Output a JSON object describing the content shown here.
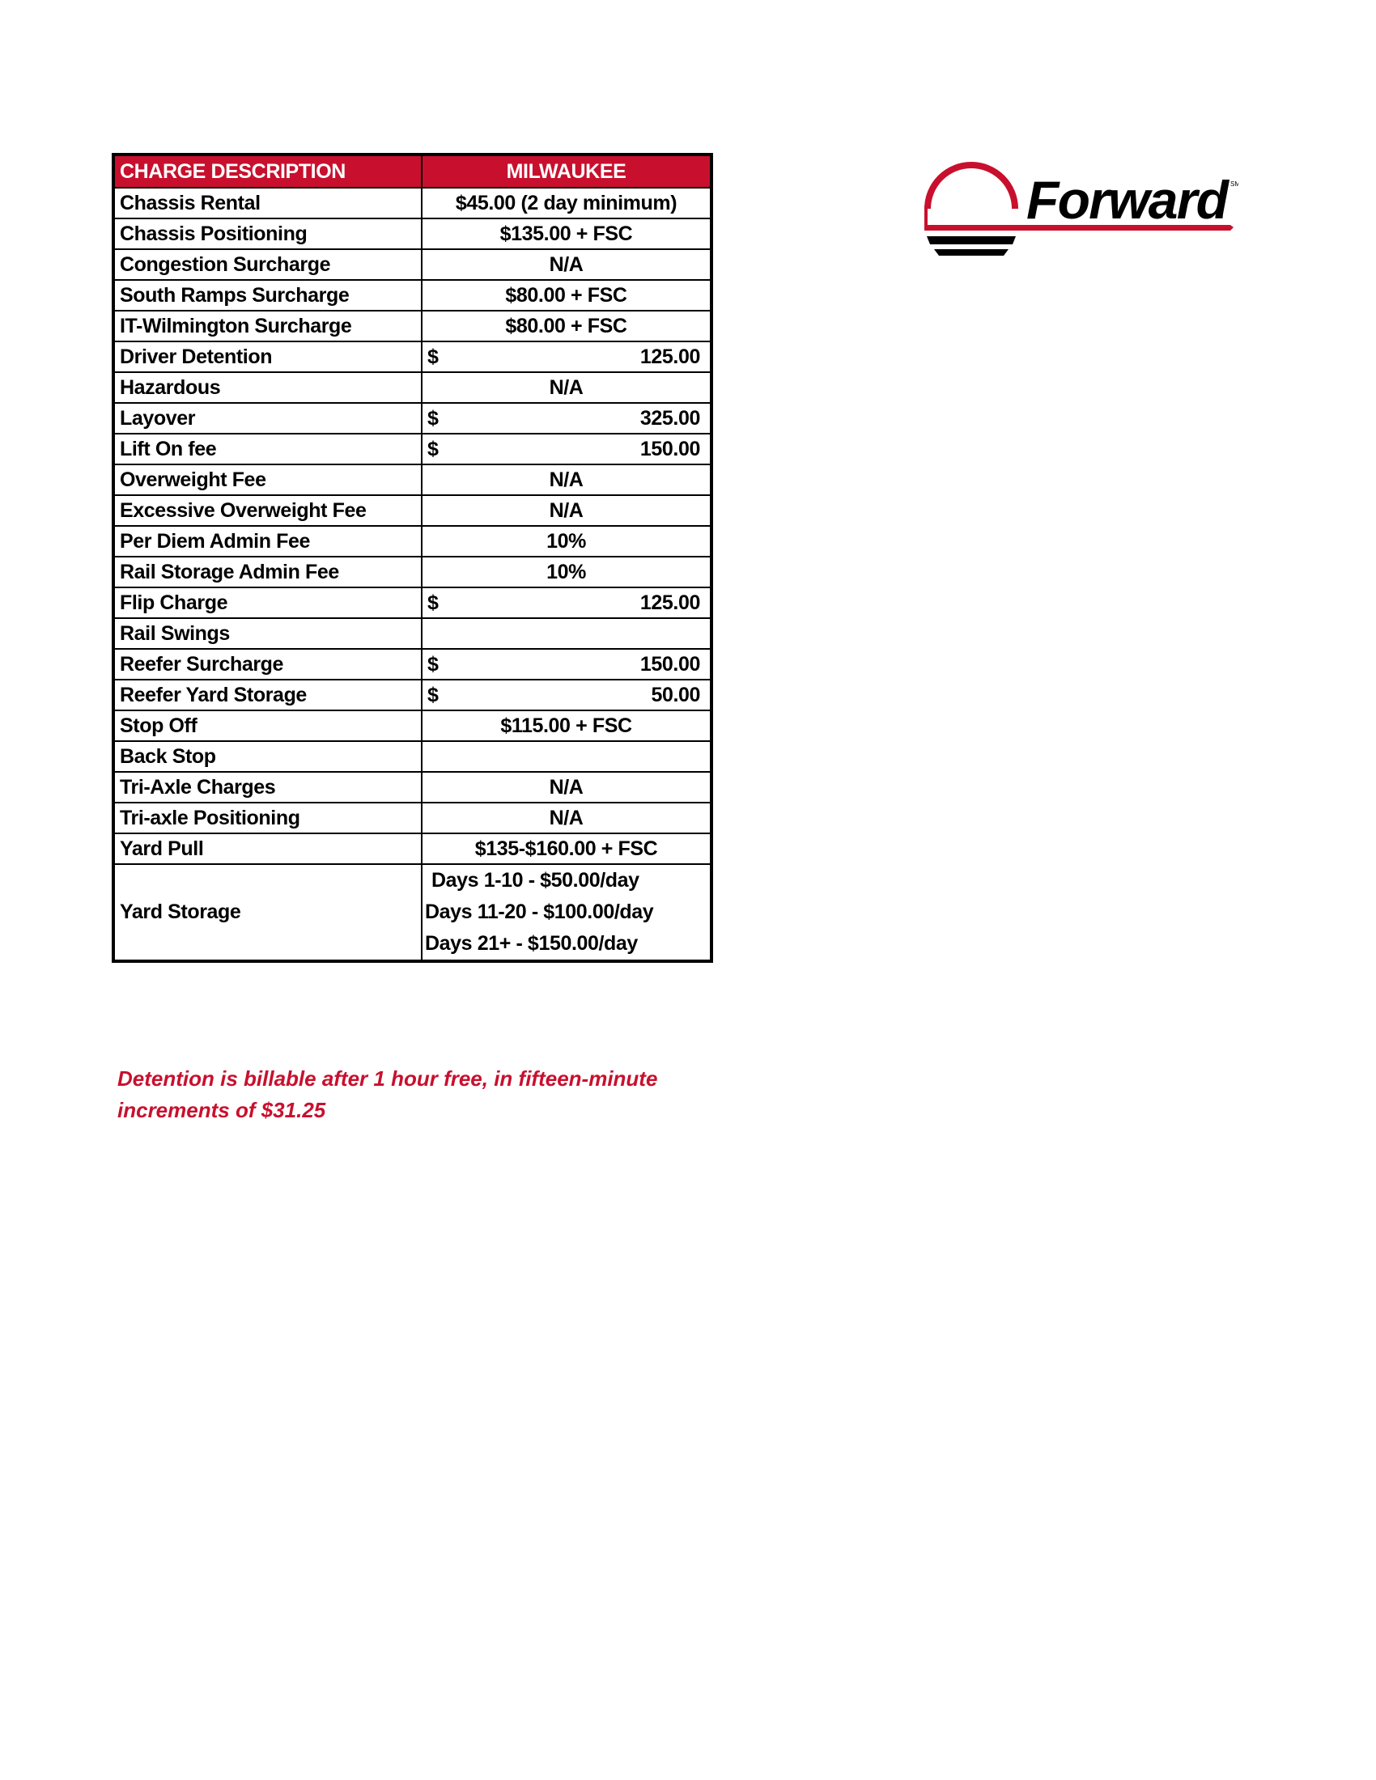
{
  "table": {
    "headers": [
      "CHARGE DESCRIPTION",
      "MILWAUKEE"
    ],
    "rows": [
      {
        "desc": "Chassis Rental",
        "value": "$45.00 (2 day minimum)"
      },
      {
        "desc": "Chassis Positioning",
        "value": "$135.00 + FSC"
      },
      {
        "desc": "Congestion Surcharge",
        "value": "N/A"
      },
      {
        "desc": "South Ramps Surcharge",
        "value": "$80.00 + FSC"
      },
      {
        "desc": "IT-Wilmington Surcharge",
        "value": "$80.00 + FSC"
      },
      {
        "desc": "Driver Detention",
        "currency": "$",
        "amount": "125.00"
      },
      {
        "desc": "Hazardous",
        "value": "N/A"
      },
      {
        "desc": "Layover",
        "currency": "$",
        "amount": "325.00"
      },
      {
        "desc": "Lift On fee",
        "currency": "$",
        "amount": "150.00"
      },
      {
        "desc": "Overweight Fee",
        "value": "N/A"
      },
      {
        "desc": "Excessive Overweight Fee",
        "value": "N/A"
      },
      {
        "desc": "Per Diem Admin Fee",
        "value": "10%"
      },
      {
        "desc": "Rail Storage Admin Fee",
        "value": "10%"
      },
      {
        "desc": "Flip Charge",
        "currency": "$",
        "amount": "125.00"
      },
      {
        "desc": "Rail Swings",
        "value": ""
      },
      {
        "desc": "Reefer Surcharge",
        "currency": "$",
        "amount": "150.00"
      },
      {
        "desc": "Reefer Yard Storage",
        "currency": "$",
        "amount": "50.00"
      },
      {
        "desc": "Stop Off",
        "value": "$115.00 + FSC"
      },
      {
        "desc": "Back Stop",
        "value": ""
      },
      {
        "desc": "Tri-Axle Charges",
        "value": "N/A"
      },
      {
        "desc": "Tri-axle Positioning",
        "value": "N/A"
      },
      {
        "desc": "Yard Pull",
        "value": "$135-$160.00 + FSC"
      }
    ],
    "yard_storage": {
      "desc": "Yard Storage",
      "lines": [
        "Days 1-10 - $50.00/day",
        "Days 11-20 - $100.00/day",
        "Days 21+ - $150.00/day"
      ]
    }
  },
  "note": "Detention is billable after 1 hour free, in fifteen-minute increments of $31.25",
  "logo": {
    "text": "Forward",
    "mark": "SM",
    "colors": {
      "red": "#c8102e",
      "black": "#000000"
    }
  }
}
